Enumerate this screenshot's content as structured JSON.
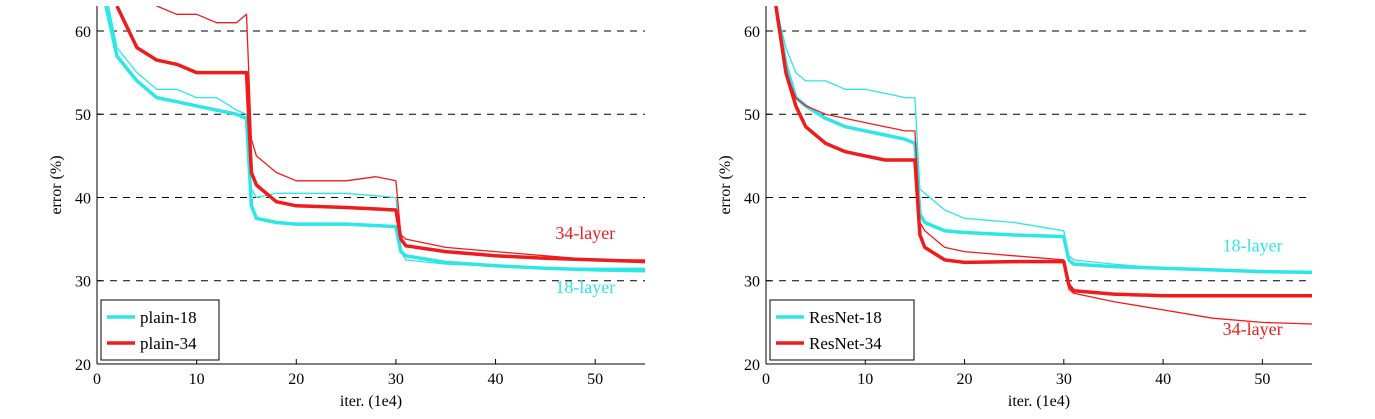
{
  "colors": {
    "cyan": "#2EE6E6",
    "red": "#EE1C1C",
    "grid": "#000000"
  },
  "chart_data": [
    {
      "type": "line",
      "xlabel": "iter. (1e4)",
      "ylabel": "error (%)",
      "xlim": [
        0,
        55
      ],
      "ylim": [
        20,
        63
      ],
      "xticks": [
        "0",
        "10",
        "20",
        "30",
        "40",
        "50"
      ],
      "yticks": [
        "20",
        "30",
        "40",
        "50",
        "60"
      ],
      "grid": "horizontal-dashed",
      "legend_position": "bottom-left",
      "legend": [
        "plain-18",
        "plain-34"
      ],
      "annotations": [
        {
          "text": "34-layer",
          "color": "red",
          "x": 46,
          "y": 35
        },
        {
          "text": "18-layer",
          "color": "cyan",
          "x": 46,
          "y": 28.5
        }
      ],
      "series": [
        {
          "name": "plain-18",
          "color": "cyan",
          "style": "train",
          "x": [
            0,
            2,
            4,
            6,
            8,
            10,
            12,
            14,
            15,
            15.5,
            16,
            18,
            20,
            25,
            30,
            30.5,
            31,
            35,
            40,
            45,
            50,
            55
          ],
          "y": [
            70,
            58,
            55,
            53,
            53,
            52,
            52,
            50.5,
            50,
            41,
            40,
            40.5,
            40.5,
            40.5,
            40,
            33.5,
            32.5,
            32,
            31.8,
            31.5,
            31.5,
            31.5
          ]
        },
        {
          "name": "plain-18",
          "color": "cyan",
          "style": "val",
          "x": [
            0,
            2,
            4,
            6,
            8,
            10,
            12,
            14,
            15,
            15.5,
            16,
            18,
            20,
            25,
            30,
            30.5,
            31,
            35,
            40,
            45,
            50,
            55
          ],
          "y": [
            68,
            57,
            54,
            52,
            51.5,
            51,
            50.5,
            50,
            49.5,
            39,
            37.5,
            37,
            36.8,
            36.8,
            36.5,
            33.5,
            33,
            32.2,
            31.8,
            31.5,
            31.3,
            31.2
          ]
        },
        {
          "name": "plain-34",
          "color": "red",
          "style": "train",
          "x": [
            2,
            4,
            6,
            8,
            10,
            12,
            14,
            15,
            15.5,
            16,
            18,
            20,
            25,
            28,
            30,
            30.5,
            31,
            35,
            40,
            45,
            50,
            55
          ],
          "y": [
            70,
            65,
            63,
            62,
            62,
            61,
            61,
            62,
            47,
            45,
            43,
            42,
            42,
            42.5,
            42,
            35.5,
            35,
            34,
            33.5,
            33,
            32.5,
            32.5
          ]
        },
        {
          "name": "plain-34",
          "color": "red",
          "style": "val",
          "x": [
            2,
            4,
            6,
            8,
            10,
            12,
            14,
            15,
            15.5,
            16,
            18,
            20,
            25,
            30,
            30.5,
            31,
            35,
            40,
            45,
            50,
            55
          ],
          "y": [
            63,
            58,
            56.5,
            56,
            55,
            55,
            55,
            55,
            43,
            41.5,
            39.5,
            39,
            38.8,
            38.5,
            35,
            34.2,
            33.5,
            33,
            32.7,
            32.5,
            32.3
          ]
        }
      ]
    },
    {
      "type": "line",
      "xlabel": "iter. (1e4)",
      "ylabel": "error (%)",
      "xlim": [
        0,
        55
      ],
      "ylim": [
        20,
        63
      ],
      "xticks": [
        "0",
        "10",
        "20",
        "30",
        "40",
        "50"
      ],
      "yticks": [
        "20",
        "30",
        "40",
        "50",
        "60"
      ],
      "grid": "horizontal-dashed",
      "legend_position": "bottom-left",
      "legend": [
        "ResNet-18",
        "ResNet-34"
      ],
      "annotations": [
        {
          "text": "18-layer",
          "color": "cyan",
          "x": 46,
          "y": 33.5
        },
        {
          "text": "34-layer",
          "color": "red",
          "x": 46,
          "y": 23.5
        }
      ],
      "series": [
        {
          "name": "ResNet-18",
          "color": "cyan",
          "style": "train",
          "x": [
            1,
            2,
            3,
            4,
            6,
            8,
            10,
            12,
            14,
            15,
            15.5,
            16,
            18,
            20,
            25,
            30,
            30.5,
            31,
            35,
            40,
            45,
            50,
            55
          ],
          "y": [
            63,
            58,
            55,
            54,
            54,
            53,
            53,
            52.5,
            52,
            52,
            41,
            40.5,
            38.5,
            37.5,
            37,
            36,
            33,
            32.5,
            32,
            31.5,
            31.3,
            31.2,
            31
          ]
        },
        {
          "name": "ResNet-18",
          "color": "cyan",
          "style": "val",
          "x": [
            1,
            2,
            3,
            4,
            6,
            8,
            10,
            12,
            14,
            15,
            15.5,
            16,
            18,
            20,
            25,
            30,
            30.5,
            31,
            35,
            40,
            45,
            50,
            55
          ],
          "y": [
            63,
            56,
            52,
            51,
            49.5,
            48.5,
            48,
            47.5,
            47,
            46.5,
            38,
            37,
            36,
            35.8,
            35.5,
            35.3,
            32.5,
            32,
            31.7,
            31.5,
            31.3,
            31.1,
            31
          ]
        },
        {
          "name": "ResNet-34",
          "color": "red",
          "style": "train",
          "x": [
            1,
            2,
            3,
            4,
            6,
            8,
            10,
            12,
            14,
            15,
            15.5,
            16,
            18,
            20,
            25,
            30,
            30.5,
            31,
            35,
            40,
            45,
            50,
            55
          ],
          "y": [
            63,
            55,
            52,
            51,
            50,
            49.5,
            49,
            48.5,
            48,
            48,
            37,
            36,
            34,
            33.5,
            33,
            32.5,
            29,
            28.5,
            27.5,
            26.5,
            25.5,
            25,
            24.8
          ]
        },
        {
          "name": "ResNet-34",
          "color": "red",
          "style": "val",
          "x": [
            1,
            2,
            3,
            4,
            6,
            8,
            10,
            12,
            14,
            15,
            15.5,
            16,
            18,
            20,
            25,
            30,
            30.5,
            31,
            35,
            40,
            45,
            50,
            55
          ],
          "y": [
            63,
            55,
            51,
            48.5,
            46.5,
            45.5,
            45,
            44.5,
            44.5,
            44.5,
            35.5,
            34,
            32.5,
            32.2,
            32.3,
            32.3,
            29.5,
            28.8,
            28.4,
            28.2,
            28.2,
            28.2,
            28.2
          ]
        }
      ]
    }
  ]
}
